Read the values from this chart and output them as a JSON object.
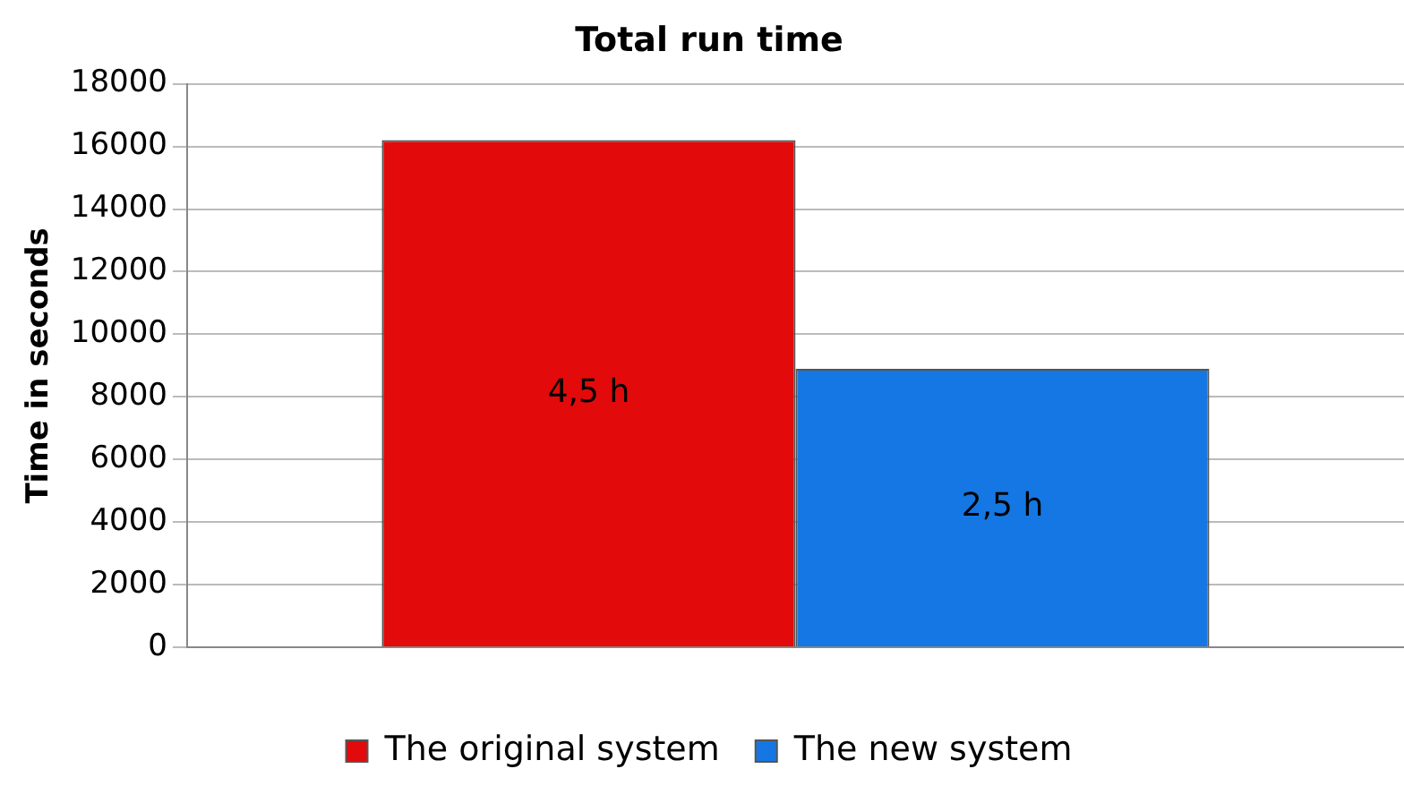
{
  "chart_data": {
    "type": "bar",
    "title": "Total run time",
    "ylabel": "Time in seconds",
    "categories": [
      null
    ],
    "series": [
      {
        "name": "The original system",
        "color": "#e20a0a",
        "values": [
          16200
        ]
      },
      {
        "name": "The new system",
        "color": "#1577e3",
        "values": [
          8900
        ]
      }
    ],
    "annotations": [
      "4,5 h",
      "2,5 h"
    ],
    "ylim": [
      0,
      18000
    ],
    "yticks": [
      0,
      2000,
      4000,
      6000,
      8000,
      10000,
      12000,
      14000,
      16000,
      18000
    ],
    "grid": "y",
    "legend": "bottom"
  }
}
